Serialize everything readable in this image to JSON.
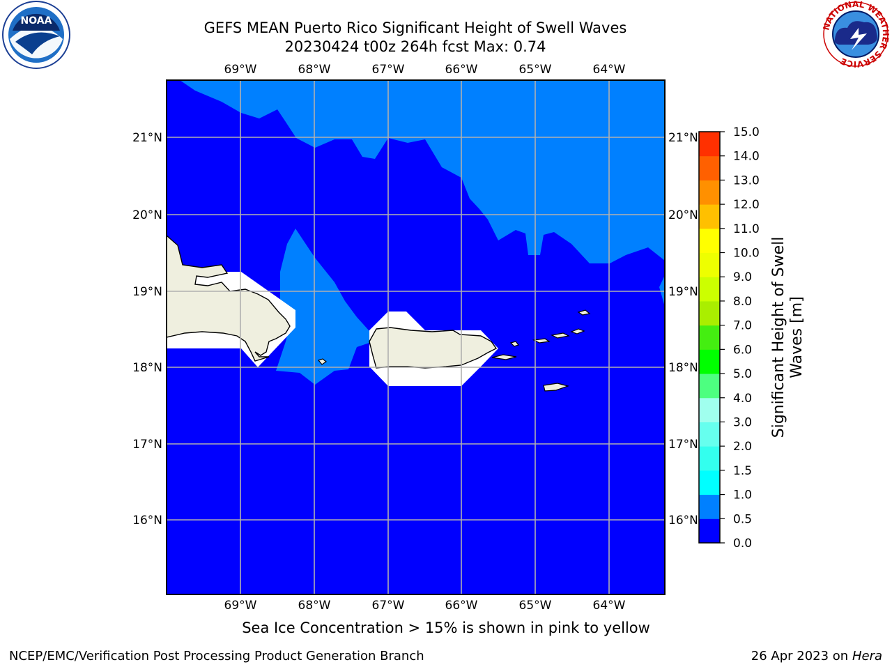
{
  "title": {
    "line1": "GEFS MEAN Puerto Rico Significant Height of Swell Waves",
    "line2": "20230424 t00z 264h fcst   Max: 0.74"
  },
  "map": {
    "lon_labels": [
      "69°W",
      "68°W",
      "67°W",
      "66°W",
      "65°W",
      "64°W"
    ],
    "lat_labels": [
      "21°N",
      "20°N",
      "19°N",
      "18°N",
      "17°N",
      "16°N"
    ],
    "colors": {
      "range_0_0.5": "#0000ff",
      "range_0.5_1.0": "#0080ff",
      "land": "#efefdf",
      "grid": "#b0b0b0"
    }
  },
  "colorbar": {
    "label_line1": "Significant Height of Swell",
    "label_line2": "Waves [m]",
    "levels": [
      "0.0",
      "0.5",
      "1.0",
      "1.5",
      "2.0",
      "3.0",
      "4.0",
      "5.0",
      "6.0",
      "7.0",
      "8.0",
      "9.0",
      "10.0",
      "11.0",
      "12.0",
      "13.0",
      "14.0",
      "15.0"
    ],
    "colors": [
      "#0000ff",
      "#0080ff",
      "#00ffff",
      "#33ffee",
      "#66ffee",
      "#a0ffee",
      "#4dff80",
      "#00ff00",
      "#44ee11",
      "#aaee00",
      "#ccff00",
      "#eeff00",
      "#ffff00",
      "#ffc000",
      "#ff9000",
      "#ff6000",
      "#ff3000",
      "#ff0000"
    ]
  },
  "caption": "Sea Ice Concentration > 15% is shown in pink to yellow",
  "footer": {
    "left": "NCEP/EMC/Verification Post Processing Product Generation Branch",
    "right_date": "26 Apr 2023 on ",
    "right_machine": "Hera"
  },
  "logos": {
    "noaa_text": "NOAA",
    "nws_ring_text": "NATIONAL WEATHER SERVICE"
  }
}
